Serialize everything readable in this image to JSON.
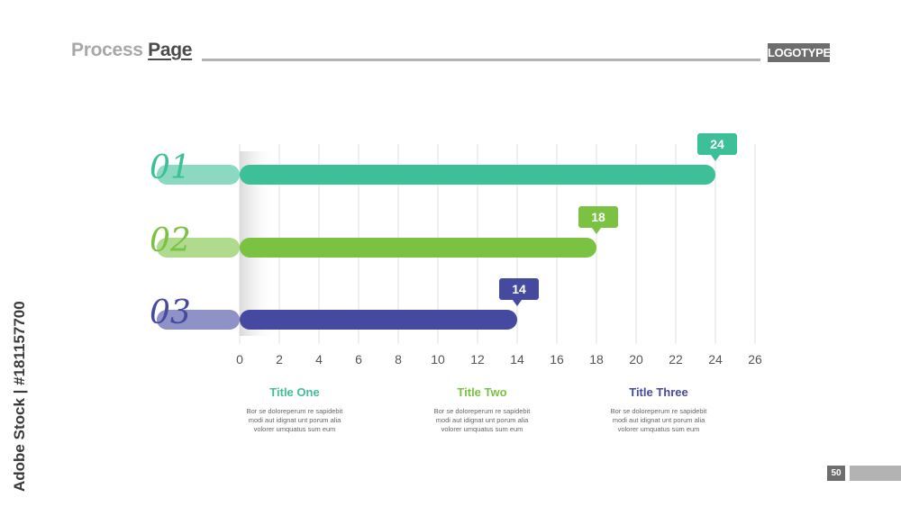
{
  "header": {
    "title_light": "Process",
    "title_dark": "Page",
    "logo": "LOGOTYPE"
  },
  "side_credit": "Adobe Stock | #181157700",
  "page_number": "50",
  "colors": {
    "teal": "#3dbf97",
    "green": "#7cc242",
    "navy": "#454aa0",
    "grid": "#e2e2e2"
  },
  "chart_data": {
    "type": "bar",
    "orientation": "horizontal",
    "categories": [
      "01",
      "02",
      "03"
    ],
    "values": [
      24,
      18,
      14
    ],
    "xlim": [
      0,
      26
    ],
    "xticks": [
      0,
      2,
      4,
      6,
      8,
      10,
      12,
      14,
      16,
      18,
      20,
      22,
      24,
      26
    ],
    "grid": "vertical",
    "title": "",
    "xlabel": "",
    "ylabel": ""
  },
  "columns": [
    {
      "title": "Title One",
      "body": [
        "Bor se doloreperum re sapidebit",
        "modi aut idignat unt porum alia",
        "volorer umquatus sum eum"
      ]
    },
    {
      "title": "Title Two",
      "body": [
        "Bor se doloreperum re sapidebit",
        "modi aut idignat unt porum alia",
        "volorer umquatus sum eum"
      ]
    },
    {
      "title": "Title Three",
      "body": [
        "Bor se doloreperum re sapidebit",
        "modi aut idignat unt porum alia",
        "volorer umquatus sum eum"
      ]
    }
  ]
}
